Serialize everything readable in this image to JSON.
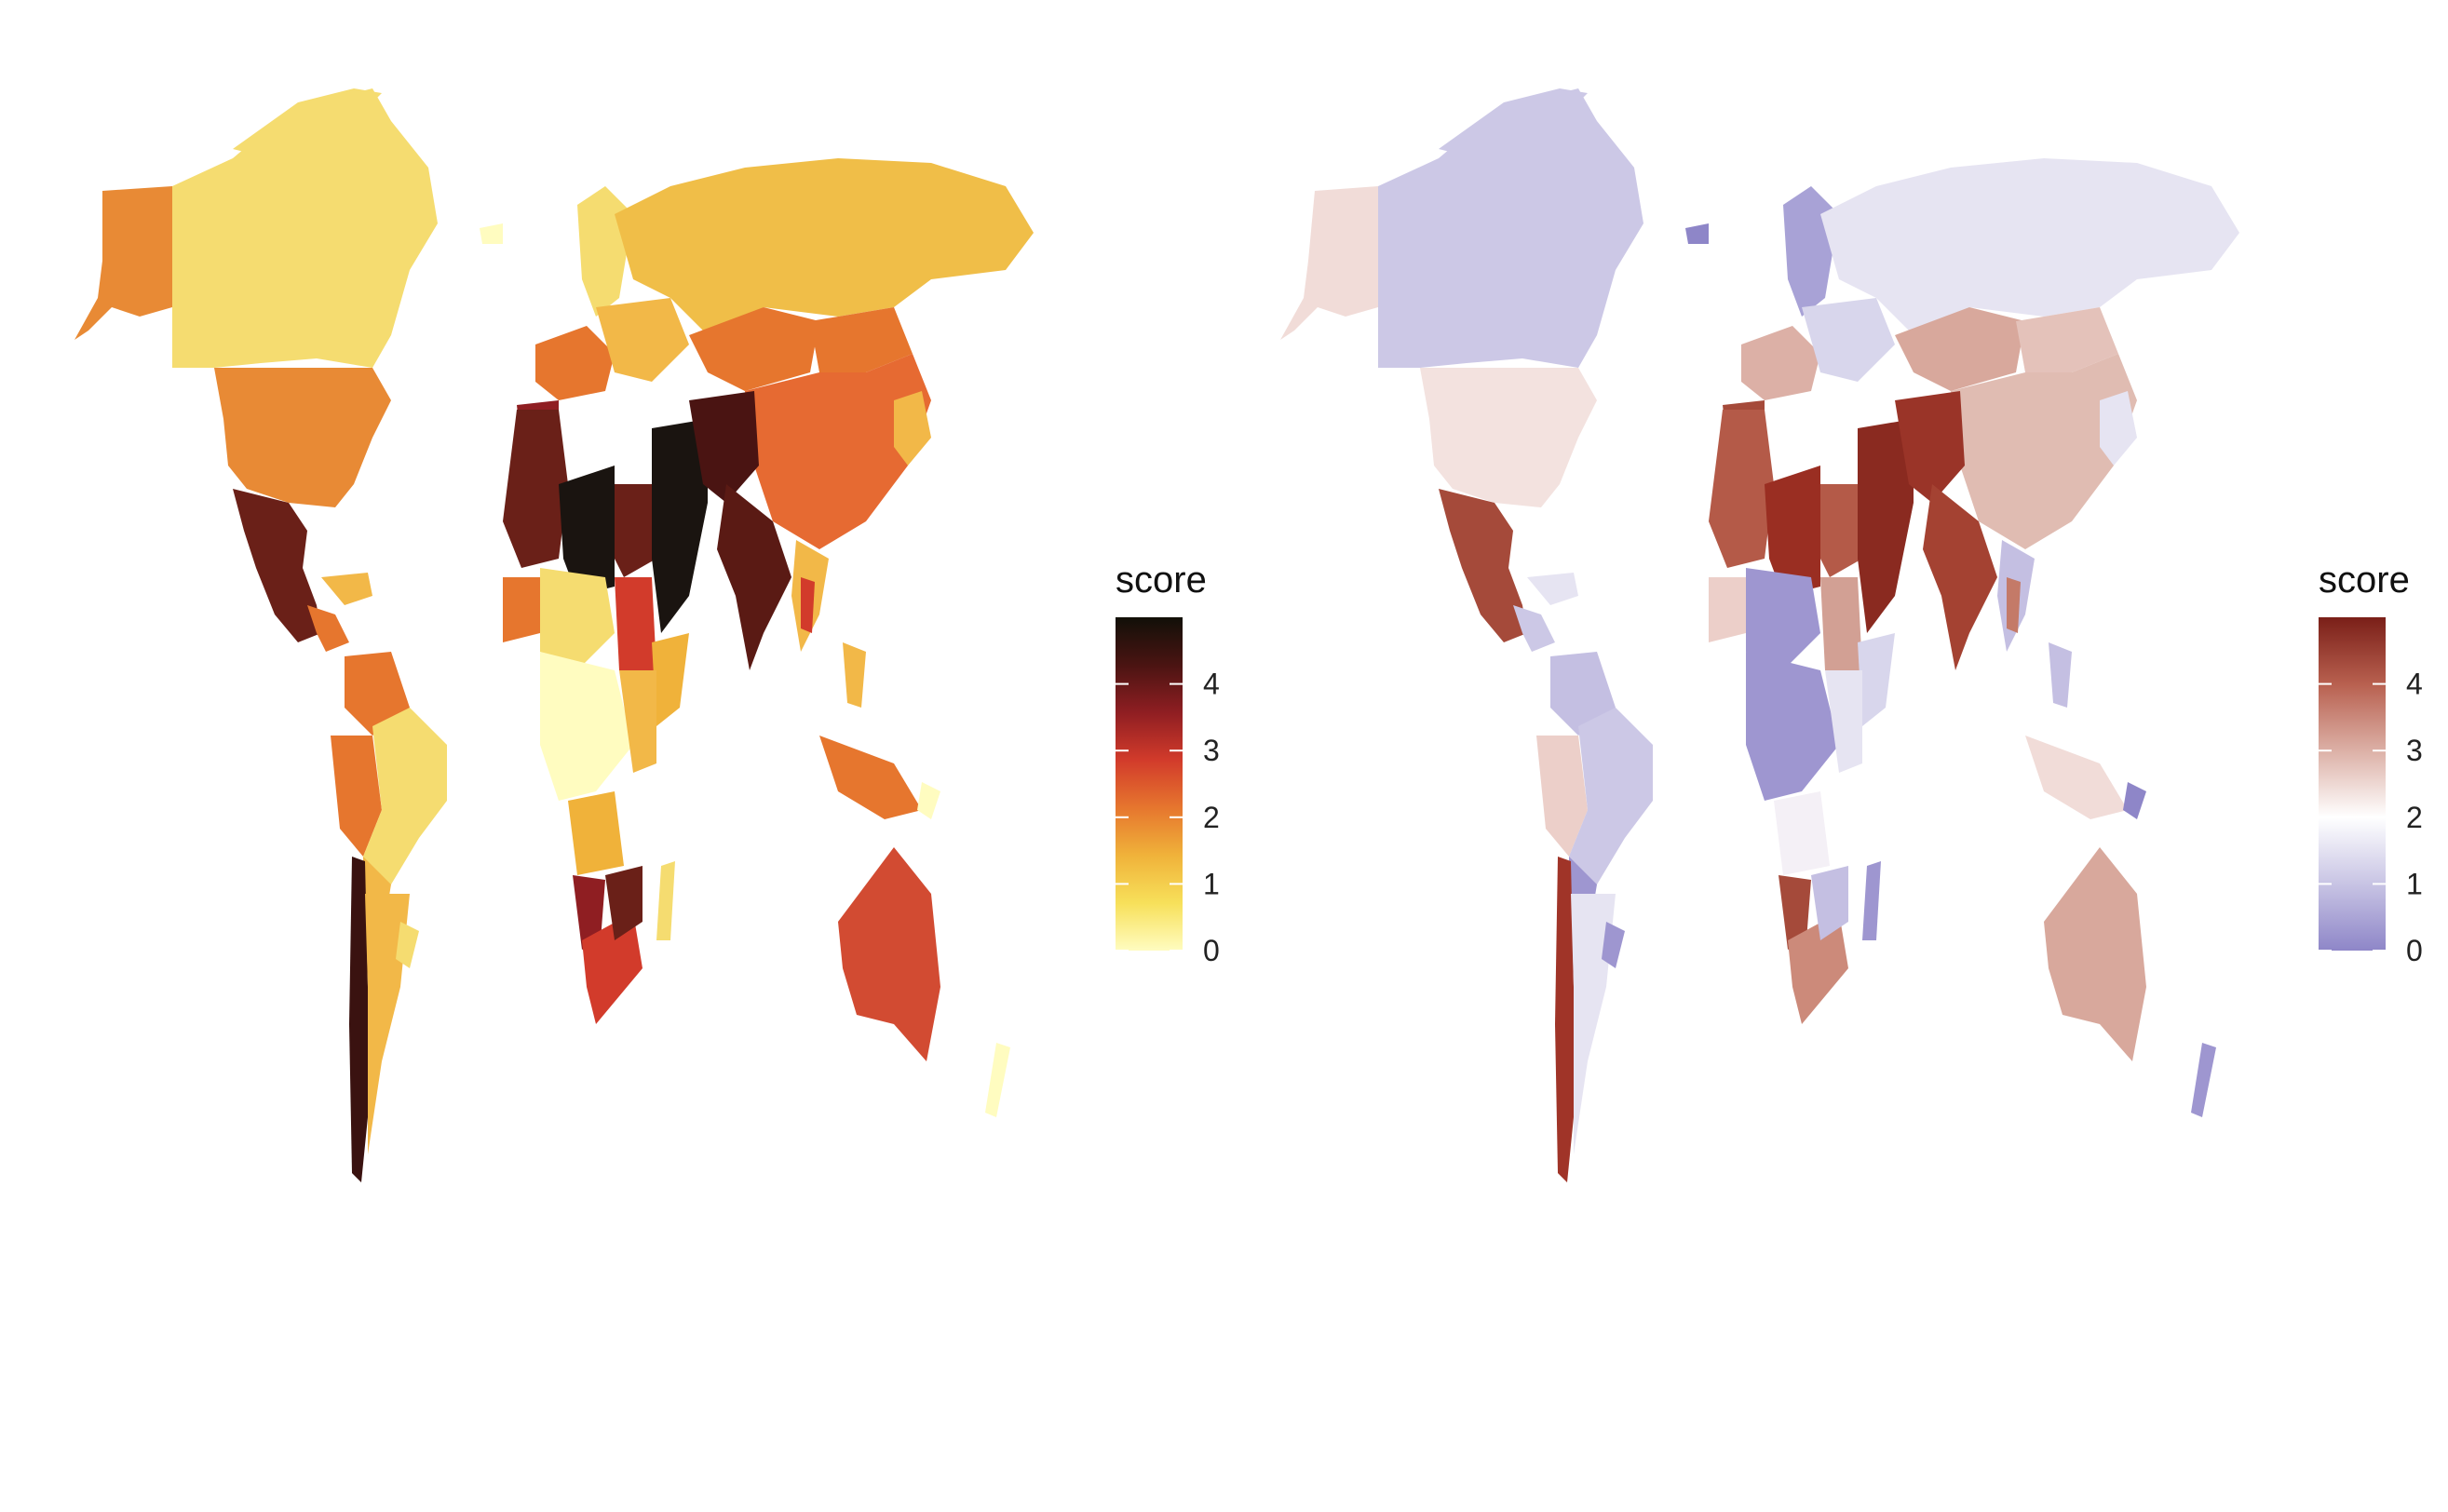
{
  "panels": [
    {
      "id": "left",
      "legend": {
        "title": "score",
        "ticks": [
          "0",
          "1",
          "2",
          "3",
          "4"
        ],
        "tick_values": [
          0,
          1,
          2,
          3,
          4
        ],
        "range": [
          0,
          5
        ],
        "colors": [
          "#fffcc0",
          "#f7e05a",
          "#f0b23a",
          "#e6762e",
          "#d23b2b",
          "#8f1e22",
          "#4a1412",
          "#111008"
        ]
      }
    },
    {
      "id": "right",
      "legend": {
        "title": "score",
        "ticks": [
          "0",
          "1",
          "2",
          "3",
          "4"
        ],
        "tick_values": [
          0,
          1,
          2,
          3,
          4
        ],
        "range": [
          0,
          5
        ],
        "colors": [
          "#8e86c8",
          "#c8c4e4",
          "#ffffff",
          "#dcb0a6",
          "#b8604f",
          "#7a1f18"
        ]
      }
    }
  ]
}
